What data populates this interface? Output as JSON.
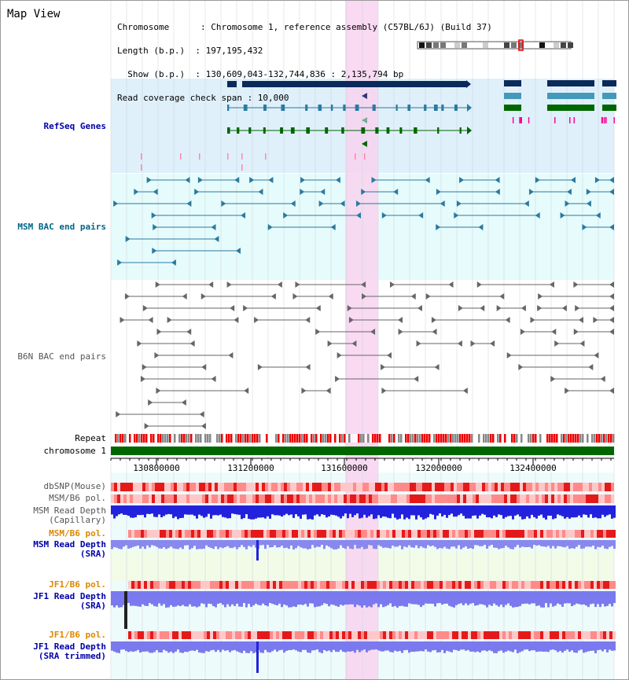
{
  "view": {
    "title": "Map View",
    "info_lines": [
      "Chromosome      : Chromosome 1, reference assembly (C57BL/6J) (Build 37)",
      "Length (b.p.)  : 197,195,432",
      "  Show (b.p.)  : 130,609,043-132,744,836 : 2,135,794 bp",
      "Read coverage check span : 10,000"
    ]
  },
  "tracks": {
    "refseq": "RefSeq Genes",
    "msm_bac": "MSM BAC end pairs",
    "b6n_bac": "B6N BAC end pairs",
    "repeat": "Repeat",
    "chromosome": "chromosome 1",
    "dbsnp": "dbSNP(Mouse)",
    "msm_b6_pol_1": "MSM/B6 pol.",
    "msm_depth_cap": "MSM Read Depth\n(Capillary)",
    "msm_b6_pol_2": "MSM/B6 pol.",
    "msm_depth_sra": "MSM Read Depth\n(SRA)",
    "jf1_b6_pol_1": "JF1/B6 pol.",
    "jf1_depth_sra": "JF1 Read Depth\n(SRA)",
    "jf1_b6_pol_2": "JF1/B6 pol.",
    "jf1_depth_trim": "JF1 Read Depth\n(SRA trimmed)"
  },
  "axis": {
    "ticks": [
      "130800000",
      "131200000",
      "131600000",
      "132000000",
      "132400000"
    ]
  },
  "colors": {
    "refseq_bg": "#dff0fb",
    "msm_bac_bg": "#e6fbfb",
    "highlight": "#f8d4f0",
    "refseq_label": "#0000aa",
    "msm_label": "#006688",
    "b6n_label": "#555555",
    "chromosome_bar": "#006600",
    "pol_label": "#dd8800",
    "depth_label": "#0000aa"
  }
}
